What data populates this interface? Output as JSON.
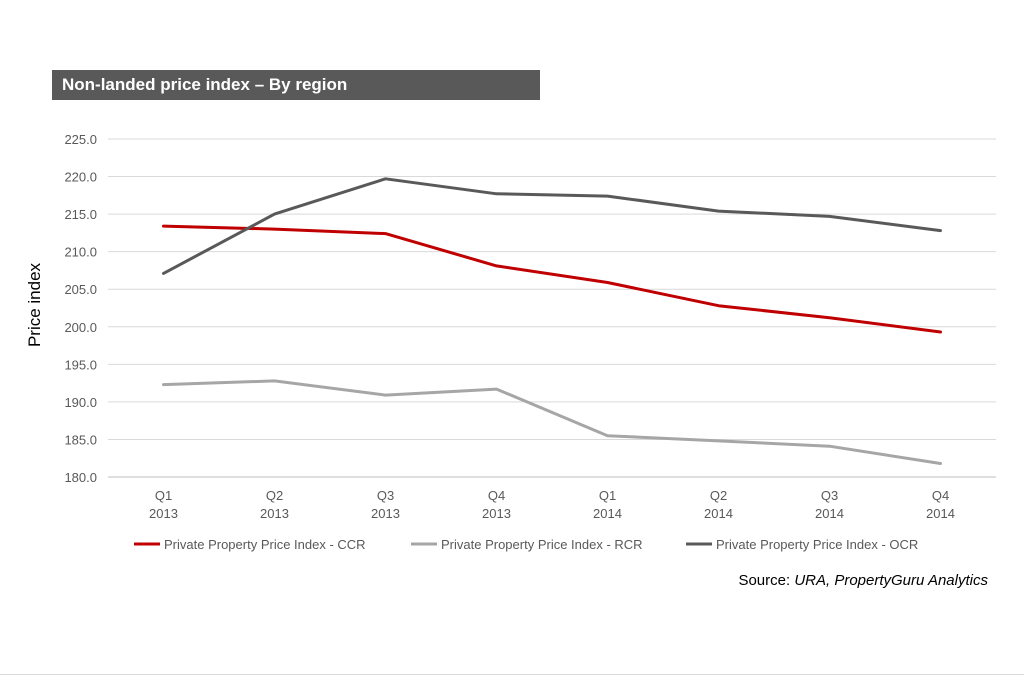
{
  "title": "Non-landed price index – By region",
  "source": {
    "prefix": "Source: ",
    "text": "URA, PropertyGuru Analytics"
  },
  "chart_data": {
    "type": "line",
    "categories": [
      [
        "Q1",
        "2013"
      ],
      [
        "Q2",
        "2013"
      ],
      [
        "Q3",
        "2013"
      ],
      [
        "Q4",
        "2013"
      ],
      [
        "Q1",
        "2014"
      ],
      [
        "Q2",
        "2014"
      ],
      [
        "Q3",
        "2014"
      ],
      [
        "Q4",
        "2014"
      ]
    ],
    "ylabel": "Price index",
    "xlabel": "",
    "ylim": [
      180,
      225
    ],
    "yticks": [
      "180.0",
      "185.0",
      "190.0",
      "195.0",
      "200.0",
      "205.0",
      "210.0",
      "215.0",
      "220.0",
      "225.0"
    ],
    "grid": true,
    "legend_position": "bottom",
    "series": [
      {
        "name": "Private Property Price Index - CCR",
        "color": "#c00000",
        "values": [
          213.4,
          213.0,
          212.4,
          208.1,
          205.9,
          202.8,
          201.2,
          199.3
        ]
      },
      {
        "name": "Private Property Price Index - RCR",
        "color": "#a6a6a6",
        "values": [
          192.3,
          192.8,
          190.9,
          191.7,
          185.5,
          184.8,
          184.1,
          181.8
        ]
      },
      {
        "name": "Private Property Price Index - OCR",
        "color": "#595959",
        "values": [
          207.1,
          215.0,
          219.7,
          217.7,
          217.4,
          215.4,
          214.7,
          212.8
        ]
      }
    ]
  }
}
